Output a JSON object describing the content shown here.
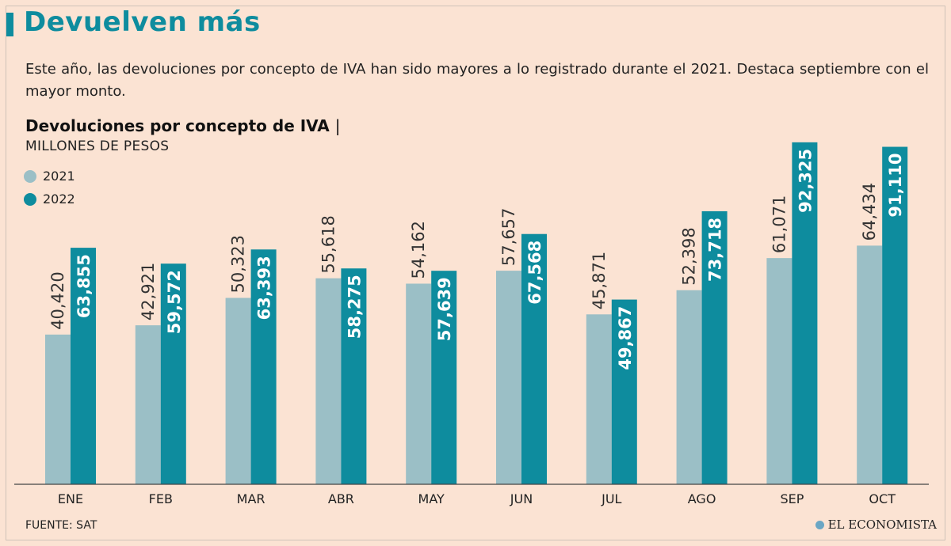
{
  "header": {
    "title": "Devuelven más",
    "description": "Este año, las devoluciones por concepto de IVA han sido mayores a lo registrado durante el 2021. Destaca septiembre con el mayor monto."
  },
  "colors": {
    "accent": "#0e8c9e",
    "series_2021": "#9bbfc6",
    "series_2022": "#0e8c9e",
    "background": "#fbe3d3"
  },
  "chart_data": {
    "type": "bar",
    "title": "Devoluciones por concepto de IVA",
    "title_separator": "|",
    "unit": "MILLONES DE PESOS",
    "categories": [
      "ENE",
      "FEB",
      "MAR",
      "ABR",
      "MAY",
      "JUN",
      "JUL",
      "AGO",
      "SEP",
      "OCT"
    ],
    "series": [
      {
        "name": "2021",
        "values": [
          40420,
          42921,
          50323,
          55618,
          54162,
          57657,
          45871,
          52398,
          61071,
          64434
        ],
        "labels": [
          "40,420",
          "42,921",
          "50,323",
          "55,618",
          "54,162",
          "57,657",
          "45,871",
          "52,398",
          "61,071",
          "64,434"
        ]
      },
      {
        "name": "2022",
        "values": [
          63855,
          59572,
          63393,
          58275,
          57639,
          67568,
          49867,
          73718,
          92325,
          91110
        ],
        "labels": [
          "63,855",
          "59,572",
          "63,393",
          "58,275",
          "57,639",
          "67,568",
          "49,867",
          "73,718",
          "92,325",
          "91,110"
        ]
      }
    ],
    "ylim": [
      0,
      94000
    ],
    "grid": false,
    "legend": "top-left"
  },
  "footer": {
    "source": "FUENTE: SAT",
    "brand": "EL ECONOMISTA"
  }
}
